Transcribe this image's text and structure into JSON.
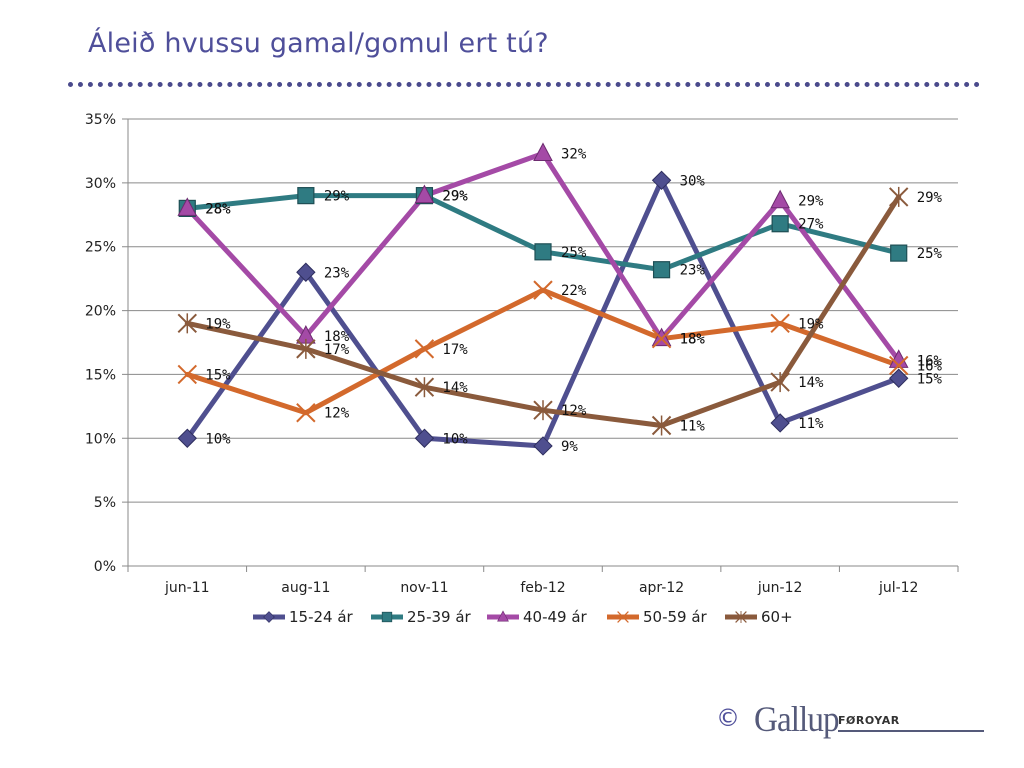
{
  "slide": {
    "title": "Áleið hvussu gamal/gomul ert tú?"
  },
  "footer": {
    "copyright": "©",
    "brand": "Gallup",
    "brand_sub": "FØROYAR"
  },
  "chart_data": {
    "type": "line",
    "categories": [
      "jun-11",
      "aug-11",
      "nov-11",
      "feb-12",
      "apr-12",
      "jun-12",
      "jul-12"
    ],
    "ylim": [
      0,
      35
    ],
    "yticks": [
      0,
      5,
      10,
      15,
      20,
      25,
      30,
      35
    ],
    "ytick_labels": [
      "0%",
      "5%",
      "10%",
      "15%",
      "20%",
      "25%",
      "30%",
      "35%"
    ],
    "grid": true,
    "legend": "bottom",
    "series": [
      {
        "name": "15-24 ár",
        "color": "#4f4f8f",
        "marker": "diamond",
        "values": [
          10,
          23,
          10,
          9.4,
          30.2,
          11.2,
          14.7
        ],
        "labels": [
          "10%",
          "23%",
          "10%",
          "9%",
          "30%",
          "11%",
          "15%"
        ]
      },
      {
        "name": "25-39 ár",
        "color": "#2f7b82",
        "marker": "square",
        "values": [
          28,
          29,
          29,
          24.6,
          23.2,
          26.8,
          24.5
        ],
        "labels": [
          "28%",
          "29%",
          "29%",
          "25%",
          "23%",
          "27%",
          "25%"
        ]
      },
      {
        "name": "40-49 ár",
        "color": "#a44aa6",
        "marker": "triangle",
        "values": [
          28,
          18,
          29,
          32.3,
          17.8,
          28.6,
          16.1
        ],
        "labels": [
          "28%",
          "18%",
          "29%",
          "32%",
          "18%",
          "29%",
          "16%"
        ]
      },
      {
        "name": "50-59 ár",
        "color": "#d3692c",
        "marker": "x",
        "values": [
          15,
          12,
          17,
          21.6,
          17.8,
          19,
          15.7
        ],
        "labels": [
          "15%",
          "12%",
          "17%",
          "22%",
          "18%",
          "19%",
          "16%"
        ]
      },
      {
        "name": "60+",
        "color": "#8a5a3c",
        "marker": "star",
        "values": [
          19,
          17,
          14,
          12.2,
          11,
          14.4,
          28.9
        ],
        "labels": [
          "19%",
          "17%",
          "14%",
          "12%",
          "11%",
          "14%",
          "29%"
        ]
      }
    ]
  }
}
